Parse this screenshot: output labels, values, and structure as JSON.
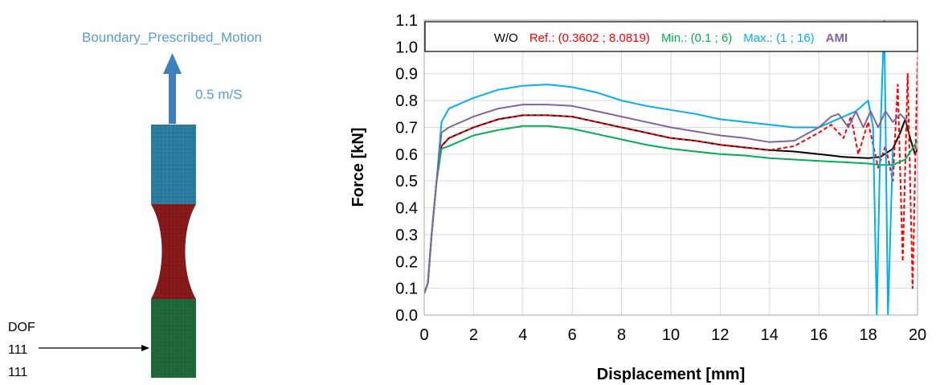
{
  "specimen": {
    "boundary_label": "Boundary_Prescribed_Motion",
    "velocity_label": "0.5 m/S",
    "dof_label": "DOF",
    "dof_value_1": "111",
    "dof_value_2": "111",
    "colors": {
      "label": "#5b9bd5",
      "arrow": "#3f7fbf",
      "top_grip": "#2e7fa6",
      "gauge": "#8b1a1a",
      "bottom_grip": "#1f6b3a"
    }
  },
  "chart_data": {
    "type": "line",
    "xlabel": "Displacement [mm]",
    "ylabel": "Force [kN]",
    "xlim": [
      0,
      20
    ],
    "ylim": [
      0,
      1.1
    ],
    "xticks": [
      "0",
      "2",
      "4",
      "6",
      "8",
      "10",
      "12",
      "14",
      "16",
      "18",
      "20"
    ],
    "yticks": [
      "0.0",
      "0.1",
      "0.2",
      "0.3",
      "0.4",
      "0.5",
      "0.6",
      "0.7",
      "0.8",
      "0.9",
      "1.0",
      "1.1"
    ],
    "grid": true,
    "legend_position": "top",
    "series": [
      {
        "name": "W/O",
        "color": "#000000",
        "dash": false,
        "points": [
          [
            0,
            0.08
          ],
          [
            0.15,
            0.12
          ],
          [
            0.3,
            0.3
          ],
          [
            0.5,
            0.5
          ],
          [
            0.7,
            0.63
          ],
          [
            1,
            0.66
          ],
          [
            2,
            0.7
          ],
          [
            3,
            0.73
          ],
          [
            4,
            0.745
          ],
          [
            5,
            0.745
          ],
          [
            6,
            0.74
          ],
          [
            7,
            0.72
          ],
          [
            8,
            0.7
          ],
          [
            9,
            0.68
          ],
          [
            10,
            0.66
          ],
          [
            11,
            0.65
          ],
          [
            12,
            0.635
          ],
          [
            13,
            0.625
          ],
          [
            14,
            0.615
          ],
          [
            15,
            0.61
          ],
          [
            16,
            0.6
          ],
          [
            17,
            0.59
          ],
          [
            18,
            0.585
          ],
          [
            18.5,
            0.59
          ],
          [
            19,
            0.62
          ],
          [
            19.3,
            0.68
          ],
          [
            19.5,
            0.73
          ],
          [
            19.7,
            0.66
          ],
          [
            19.9,
            0.6
          ],
          [
            20,
            0.62
          ]
        ]
      },
      {
        "name": "Ref.: (0.3602 ; 8.0819)",
        "color": "#ff0000",
        "dash": true,
        "points": [
          [
            0,
            0.08
          ],
          [
            0.15,
            0.12
          ],
          [
            0.3,
            0.3
          ],
          [
            0.5,
            0.5
          ],
          [
            0.7,
            0.63
          ],
          [
            1,
            0.66
          ],
          [
            2,
            0.7
          ],
          [
            3,
            0.73
          ],
          [
            4,
            0.745
          ],
          [
            5,
            0.745
          ],
          [
            6,
            0.74
          ],
          [
            7,
            0.72
          ],
          [
            8,
            0.7
          ],
          [
            9,
            0.68
          ],
          [
            10,
            0.66
          ],
          [
            11,
            0.65
          ],
          [
            12,
            0.635
          ],
          [
            13,
            0.625
          ],
          [
            14,
            0.615
          ],
          [
            15,
            0.63
          ],
          [
            16,
            0.68
          ],
          [
            16.5,
            0.71
          ],
          [
            17,
            0.66
          ],
          [
            17.3,
            0.74
          ],
          [
            17.6,
            0.6
          ],
          [
            18,
            0.72
          ],
          [
            18.4,
            0.55
          ],
          [
            18.7,
            0.63
          ],
          [
            19,
            0.5
          ],
          [
            19.2,
            0.86
          ],
          [
            19.4,
            0.2
          ],
          [
            19.6,
            0.9
          ],
          [
            19.8,
            0.1
          ],
          [
            20,
            0.96
          ]
        ]
      },
      {
        "name": "Min.: (0.1 ; 6)",
        "color": "#00b050",
        "dash": false,
        "points": [
          [
            0,
            0.08
          ],
          [
            0.15,
            0.12
          ],
          [
            0.3,
            0.3
          ],
          [
            0.5,
            0.5
          ],
          [
            0.7,
            0.62
          ],
          [
            1,
            0.63
          ],
          [
            2,
            0.67
          ],
          [
            3,
            0.69
          ],
          [
            4,
            0.705
          ],
          [
            5,
            0.705
          ],
          [
            6,
            0.695
          ],
          [
            7,
            0.675
          ],
          [
            8,
            0.655
          ],
          [
            9,
            0.635
          ],
          [
            10,
            0.62
          ],
          [
            11,
            0.61
          ],
          [
            12,
            0.6
          ],
          [
            13,
            0.595
          ],
          [
            14,
            0.585
          ],
          [
            15,
            0.58
          ],
          [
            16,
            0.575
          ],
          [
            17,
            0.57
          ],
          [
            18,
            0.565
          ],
          [
            18.5,
            0.56
          ],
          [
            19,
            0.56
          ],
          [
            19.5,
            0.58
          ],
          [
            20,
            0.65
          ]
        ]
      },
      {
        "name": "Max.: (1 ; 16)",
        "color": "#00b0f0",
        "dash": false,
        "points": [
          [
            0,
            0.08
          ],
          [
            0.15,
            0.12
          ],
          [
            0.3,
            0.3
          ],
          [
            0.5,
            0.5
          ],
          [
            0.7,
            0.72
          ],
          [
            1,
            0.77
          ],
          [
            2,
            0.81
          ],
          [
            3,
            0.84
          ],
          [
            4,
            0.855
          ],
          [
            5,
            0.86
          ],
          [
            6,
            0.85
          ],
          [
            7,
            0.83
          ],
          [
            8,
            0.8
          ],
          [
            9,
            0.78
          ],
          [
            10,
            0.765
          ],
          [
            11,
            0.75
          ],
          [
            12,
            0.73
          ],
          [
            13,
            0.72
          ],
          [
            14,
            0.71
          ],
          [
            15,
            0.7
          ],
          [
            16,
            0.7
          ],
          [
            16.5,
            0.72
          ],
          [
            17,
            0.74
          ],
          [
            17.5,
            0.76
          ],
          [
            18,
            0.8
          ],
          [
            18.2,
            0.7
          ],
          [
            18.35,
            0.0
          ],
          [
            18.5,
            0.7
          ],
          [
            18.65,
            1.1
          ],
          [
            18.8,
            0.0
          ],
          [
            19,
            0.62
          ]
        ]
      },
      {
        "name": "AMI",
        "color": "#8064a2",
        "dash": false,
        "points": [
          [
            0,
            0.08
          ],
          [
            0.15,
            0.12
          ],
          [
            0.3,
            0.3
          ],
          [
            0.5,
            0.5
          ],
          [
            0.7,
            0.68
          ],
          [
            1,
            0.7
          ],
          [
            2,
            0.74
          ],
          [
            3,
            0.77
          ],
          [
            4,
            0.785
          ],
          [
            5,
            0.785
          ],
          [
            6,
            0.78
          ],
          [
            7,
            0.76
          ],
          [
            8,
            0.74
          ],
          [
            9,
            0.72
          ],
          [
            10,
            0.7
          ],
          [
            11,
            0.685
          ],
          [
            12,
            0.67
          ],
          [
            13,
            0.66
          ],
          [
            14,
            0.645
          ],
          [
            15,
            0.65
          ],
          [
            16,
            0.7
          ],
          [
            16.5,
            0.74
          ],
          [
            16.8,
            0.75
          ],
          [
            17.2,
            0.7
          ],
          [
            17.5,
            0.76
          ],
          [
            17.8,
            0.7
          ],
          [
            18.1,
            0.76
          ],
          [
            18.4,
            0.7
          ],
          [
            18.7,
            0.76
          ],
          [
            19,
            0.72
          ],
          [
            19.3,
            0.75
          ],
          [
            19.6,
            0.72
          ]
        ]
      }
    ]
  }
}
